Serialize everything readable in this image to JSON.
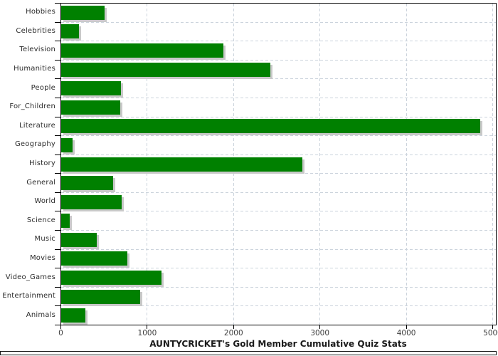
{
  "chart_data": {
    "type": "bar",
    "orientation": "horizontal",
    "title": "AUNTYCRICKET's Gold Member Cumulative Quiz Stats",
    "categories": [
      "Hobbies",
      "Celebrities",
      "Television",
      "Humanities",
      "People",
      "For_Children",
      "Literature",
      "Geography",
      "History",
      "General",
      "World",
      "Science",
      "Music",
      "Movies",
      "Video_Games",
      "Entertainment",
      "Animals"
    ],
    "values": [
      505,
      210,
      1880,
      2420,
      690,
      685,
      4850,
      135,
      2795,
      600,
      700,
      95,
      410,
      770,
      1165,
      915,
      280
    ],
    "xlabel": "",
    "ylabel": "",
    "xlim": [
      0,
      5000
    ],
    "x_ticks": [
      0,
      1000,
      2000,
      3000,
      4000,
      5000
    ],
    "grid": true,
    "legend": false,
    "gridline_style": "dashed",
    "colors": {
      "bar": "#008000",
      "bar_shadow": "#c9c9c9",
      "gridline": "#cbd3dc",
      "axis": "#000000",
      "tick_label": "#3a3a3a",
      "category_label": "#2b2b2b",
      "title_text": "#1a1a1a",
      "background": "#ffffff"
    }
  }
}
